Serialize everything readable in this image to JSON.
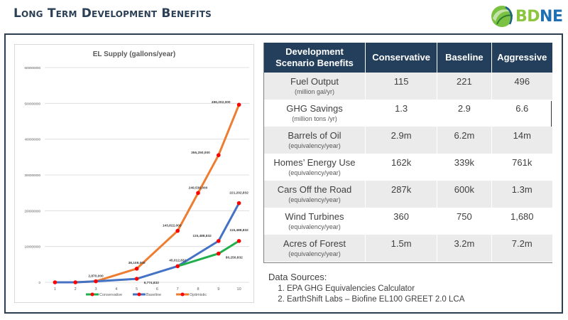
{
  "slide": {
    "title": "Long Term Development Benefits",
    "logo_text_bd": "BD",
    "logo_text_ne": "NE",
    "colors": {
      "title": "#2b3f55",
      "header_bg": "#243f5c",
      "conservative": "#20b04b",
      "baseline": "#4472c4",
      "optimistic": "#ed7d31",
      "marker": "#ff0000"
    }
  },
  "table": {
    "headers": [
      "Development Scenario Benefits",
      "Conservative",
      "Baseline",
      "Aggressive"
    ],
    "rows": [
      {
        "label": "Fuel Output",
        "unit": "(million gal/yr)",
        "values": [
          "115",
          "221",
          "496"
        ]
      },
      {
        "label": "GHG Savings",
        "unit": "(million tons /yr)",
        "values": [
          "1.3",
          "2.9",
          "6.6"
        ]
      },
      {
        "label": "Barrels of Oil",
        "unit": "(equivalency/year)",
        "values": [
          "2.9m",
          "6.2m",
          "14m"
        ]
      },
      {
        "label": "Homes’ Energy Use",
        "unit": "(equivalency/year)",
        "values": [
          "162k",
          "339k",
          "761k"
        ]
      },
      {
        "label": "Cars Off the Road",
        "unit": "(equivalency/year)",
        "values": [
          "287k",
          "600k",
          "1.3m"
        ]
      },
      {
        "label": "Wind Turbines",
        "unit": "(equivalency/year)",
        "values": [
          "360",
          "750",
          "1,680"
        ]
      },
      {
        "label": "Acres of Forest",
        "unit": "(equivalency/year)",
        "values": [
          "1.5m",
          "3.2m",
          "7.2m"
        ]
      }
    ]
  },
  "sources": {
    "heading": "Data Sources:",
    "items": [
      "EPA GHG Equivalencies Calculator",
      "EarthShift Labs – Biofine EL100 GREET 2.0 LCA"
    ]
  },
  "chart_data": {
    "type": "line",
    "title": "EL Supply (gallons/year)",
    "xlabel": "",
    "ylabel": "",
    "categories": [
      "1",
      "2",
      "3",
      "4",
      "5",
      "6",
      "7",
      "8",
      "9",
      "10"
    ],
    "ylim": [
      0,
      600000000
    ],
    "yticks": [
      0,
      100000000,
      200000000,
      300000000,
      400000000,
      500000000,
      600000000
    ],
    "ytick_labels": [
      "0",
      "100000000",
      "200000000",
      "300000000",
      "400000000",
      "500000000",
      "600000000"
    ],
    "grid": true,
    "legend": "bottom",
    "series": [
      {
        "name": "Conservative",
        "color": "#20b04b",
        "points": [
          [
            1,
            0
          ],
          [
            2,
            0
          ],
          [
            3,
            2870000
          ],
          [
            5,
            9774832
          ],
          [
            7,
            45012832
          ],
          [
            9,
            80250832
          ],
          [
            10,
            115488832
          ]
        ],
        "labels": {
          "9": "80,250,832",
          "10": "115,488,832"
        }
      },
      {
        "name": "Baseline",
        "color": "#4472c4",
        "points": [
          [
            1,
            0
          ],
          [
            2,
            0
          ],
          [
            3,
            2870000
          ],
          [
            5,
            9774832
          ],
          [
            7,
            45012832
          ],
          [
            9,
            115488832
          ],
          [
            10,
            221202832
          ]
        ],
        "labels": {
          "5": "9,774,832",
          "7": "45,012,832",
          "9": "115,488,832",
          "10": "221,202,832"
        }
      },
      {
        "name": "Optimistic",
        "color": "#ed7d31",
        "points": [
          [
            1,
            0
          ],
          [
            2,
            0
          ],
          [
            3,
            2870000
          ],
          [
            5,
            38108000
          ],
          [
            7,
            143822000
          ],
          [
            8,
            249536000
          ],
          [
            9,
            355250000
          ],
          [
            10,
            496202000
          ]
        ],
        "labels": {
          "3": "2,870,000",
          "5": "38,108,000",
          "7": "143,822,000",
          "8": "249,536,000",
          "9": "355,250,000",
          "10": "496,202,000"
        }
      }
    ]
  }
}
